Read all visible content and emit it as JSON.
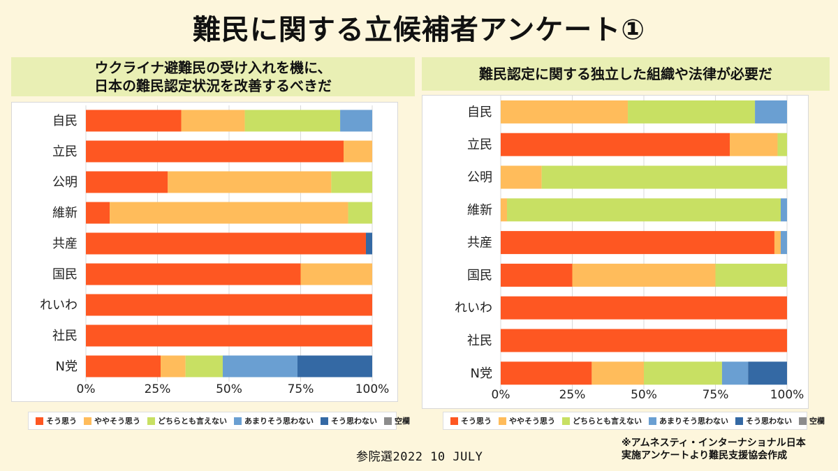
{
  "title": "難民に関する立候補者アンケート①",
  "footer": {
    "date": "参院選2022 10 JULY",
    "note_line1": "※アムネスティ・インターナショナル日本",
    "note_line2": "実施アンケートより難民支援協会作成"
  },
  "legend": [
    {
      "label": "そう思う",
      "color": "#fe5722"
    },
    {
      "label": "ややそう思う",
      "color": "#ffbc5b"
    },
    {
      "label": "どちらとも言えない",
      "color": "#c8e063"
    },
    {
      "label": "あまりそう思わない",
      "color": "#6a9fd2"
    },
    {
      "label": "そう思わない",
      "color": "#3469a4"
    },
    {
      "label": "空欄",
      "color": "#8c8c8c"
    }
  ],
  "chart_data": [
    {
      "type": "bar",
      "orientation": "horizontal",
      "stacked": true,
      "title": "ウクライナ避難民の受け入れを機に、日本の難民認定状況を改善するべきだ",
      "title_line1": "ウクライナ避難民の受け入れを機に、",
      "title_line2": "日本の難民認定状況を改善するべきだ",
      "categories": [
        "自民",
        "立民",
        "公明",
        "維新",
        "共産",
        "国民",
        "れいわ",
        "社民",
        "N党"
      ],
      "xlim": [
        0,
        100
      ],
      "xticks": [
        "0%",
        "25%",
        "50%",
        "75%",
        "100%"
      ],
      "grid": true,
      "legend_position": "bottom",
      "series": [
        {
          "name": "そう思う",
          "values": [
            33.3,
            90,
            28.6,
            8.3,
            97.8,
            75,
            100,
            100,
            26.1
          ]
        },
        {
          "name": "ややそう思う",
          "values": [
            22.2,
            10,
            57.1,
            83.3,
            0,
            25,
            0,
            0,
            8.7
          ]
        },
        {
          "name": "どちらとも言えない",
          "values": [
            33.3,
            0,
            14.3,
            8.4,
            0,
            0,
            0,
            0,
            13
          ]
        },
        {
          "name": "あまりそう思わない",
          "values": [
            11.2,
            0,
            0,
            0,
            0,
            0,
            0,
            0,
            26.1
          ]
        },
        {
          "name": "そう思わない",
          "values": [
            0,
            0,
            0,
            0,
            2.2,
            0,
            0,
            0,
            26.1
          ]
        },
        {
          "name": "空欄",
          "values": [
            0,
            0,
            0,
            0,
            0,
            0,
            0,
            0,
            0
          ]
        }
      ]
    },
    {
      "type": "bar",
      "orientation": "horizontal",
      "stacked": true,
      "title": "難民認定に関する独立した組織や法律が必要だ",
      "title_line1": "難民認定に関する独立した組織や法律が必要だ",
      "categories": [
        "自民",
        "立民",
        "公明",
        "維新",
        "共産",
        "国民",
        "れいわ",
        "社民",
        "N党"
      ],
      "xlim": [
        0,
        100
      ],
      "xticks": [
        "0%",
        "25%",
        "50%",
        "75%",
        "100%"
      ],
      "grid": true,
      "legend_position": "bottom",
      "series": [
        {
          "name": "そう思う",
          "values": [
            0,
            80,
            0,
            0,
            95.6,
            25,
            100,
            100,
            31.8
          ]
        },
        {
          "name": "ややそう思う",
          "values": [
            44.4,
            16.7,
            14.3,
            2.2,
            2.2,
            50,
            0,
            0,
            18.2
          ]
        },
        {
          "name": "どちらとも言えない",
          "values": [
            44.4,
            3.3,
            85.7,
            95.6,
            0,
            25,
            0,
            0,
            27.3
          ]
        },
        {
          "name": "あまりそう思わない",
          "values": [
            11.2,
            0,
            0,
            2.2,
            2.2,
            0,
            0,
            0,
            9.1
          ]
        },
        {
          "name": "そう思わない",
          "values": [
            0,
            0,
            0,
            0,
            0,
            0,
            0,
            0,
            13.6
          ]
        },
        {
          "name": "空欄",
          "values": [
            0,
            0,
            0,
            0,
            0,
            0,
            0,
            0,
            0
          ]
        }
      ]
    }
  ]
}
